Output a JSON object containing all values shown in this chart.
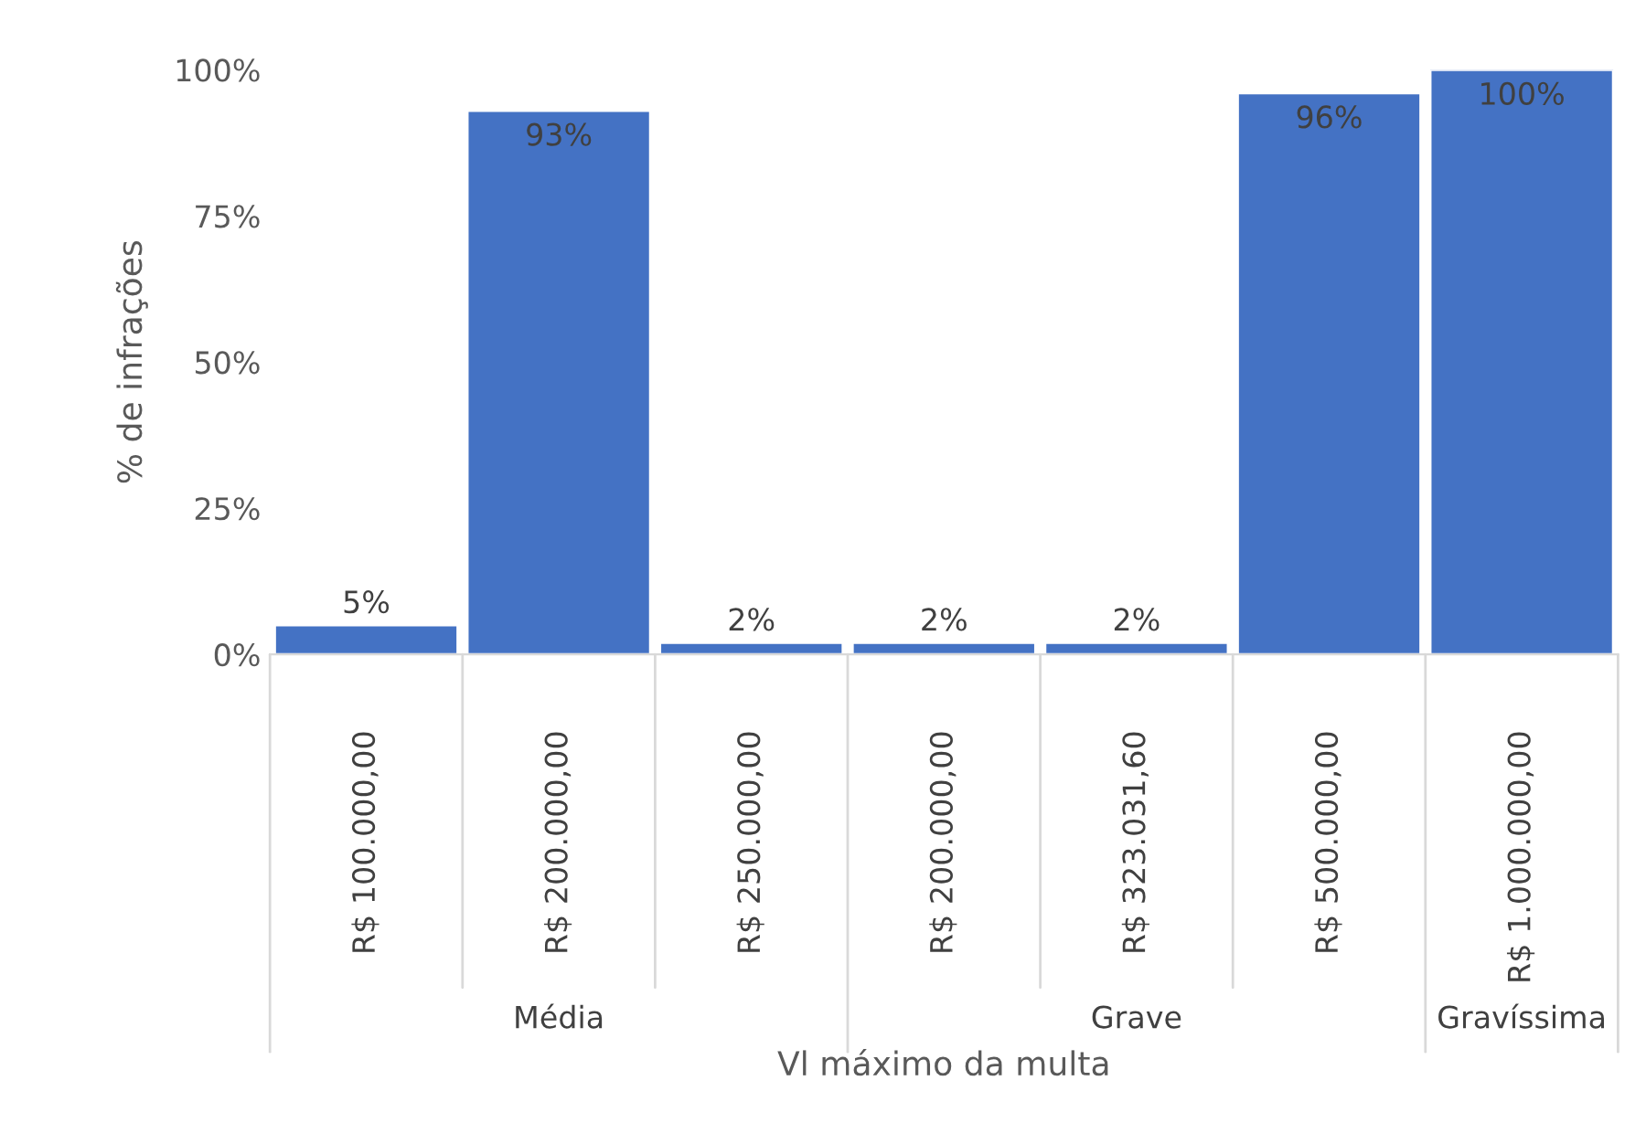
{
  "chart_data": {
    "type": "bar",
    "categories": [
      "R$ 100.000,00",
      "R$ 200.000,00",
      "R$ 250.000,00",
      "R$ 200.000,00",
      "R$ 323.031,60",
      "R$ 500.000,00",
      "R$ 1.000.000,00"
    ],
    "values": [
      5,
      93,
      2,
      2,
      2,
      96,
      100
    ],
    "color": "#4472c4",
    "ylim": [
      0,
      100
    ],
    "yticks": [
      {
        "value": 0,
        "label": "0%"
      },
      {
        "value": 25,
        "label": "25%"
      },
      {
        "value": 50,
        "label": "50%"
      },
      {
        "value": 75,
        "label": "75%"
      },
      {
        "value": 100,
        "label": "100%"
      }
    ],
    "value_labels": [
      "5%",
      "93%",
      "2%",
      "2%",
      "2%",
      "96%",
      "100%"
    ],
    "xlabel": "Vl máximo da multa",
    "ylabel": "% de infrações",
    "annotations": [
      "Média",
      "Grave",
      "Gravíssima"
    ],
    "grid": false,
    "legend": false
  }
}
